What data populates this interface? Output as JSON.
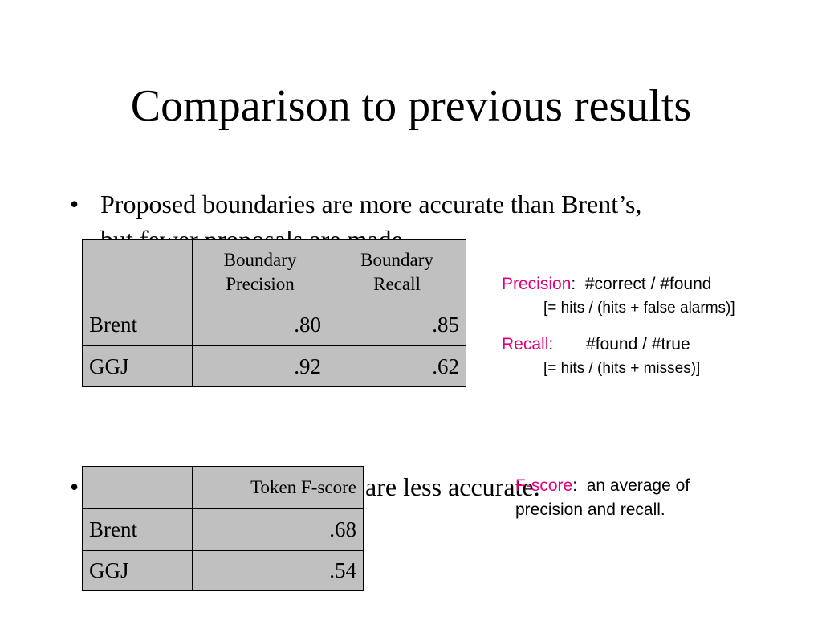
{
  "title": "Comparison to previous results",
  "bullets": [
    "Proposed boundaries are more accurate than Brent’s, but fewer proposals are made.",
    "are less accurate."
  ],
  "table1": {
    "header": [
      "",
      "Boundary Precision",
      "Boundary Recall"
    ],
    "rows": [
      [
        "Brent",
        ".80",
        ".85"
      ],
      [
        "GGJ",
        ".92",
        ".62"
      ]
    ]
  },
  "table2": {
    "header": [
      "",
      "Token F-score"
    ],
    "rows": [
      [
        "Brent",
        ".68"
      ],
      [
        "GGJ",
        ".54"
      ]
    ]
  },
  "notes": {
    "precision": {
      "term": "Precision",
      "definition": ":  #correct / #found",
      "detail": "[= hits / (hits + false alarms)]"
    },
    "recall": {
      "term": "Recall",
      "definition": ":       #found / #true",
      "detail": "[= hits / (hits + misses)]"
    },
    "fscore": {
      "term": "F-score",
      "definition": ":  an average of precision and recall."
    }
  }
}
